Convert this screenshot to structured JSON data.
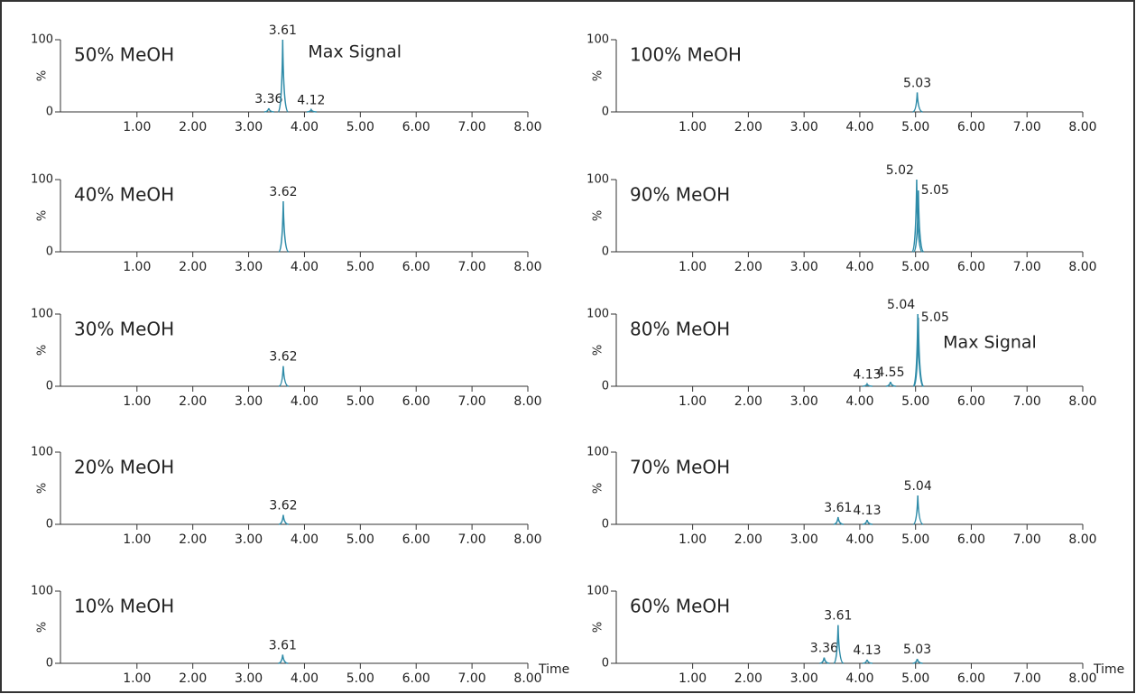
{
  "chart_data": [
    {
      "type": "line",
      "title": "50% MeOH",
      "ylabel": "%",
      "annotation": "Max Signal",
      "color": "#2e8ba8",
      "x": [
        3.36,
        3.61,
        4.12
      ],
      "values": [
        5,
        100,
        3
      ],
      "xlim": [
        -0.37,
        8
      ],
      "ylim": [
        0,
        100
      ],
      "yticks": [
        0,
        100
      ],
      "xticks": [
        {
          "value": 1,
          "label": "1.00"
        },
        {
          "value": 2,
          "label": "2.00"
        },
        {
          "value": 3,
          "label": "3.00"
        },
        {
          "value": 4,
          "label": "4.00"
        },
        {
          "value": 5,
          "label": "5.00"
        },
        {
          "value": 6,
          "label": "6.00"
        },
        {
          "value": 7,
          "label": "7.00"
        },
        {
          "value": 8,
          "label": "8.00"
        }
      ]
    },
    {
      "type": "line",
      "title": "100% MeOH",
      "ylabel": "%",
      "color": "#2e8ba8",
      "x": [
        5.03
      ],
      "values": [
        27
      ],
      "xlim": [
        -0.37,
        8
      ],
      "ylim": [
        0,
        100
      ],
      "yticks": [
        0,
        100
      ],
      "xticks": [
        {
          "value": 1,
          "label": "1.00"
        },
        {
          "value": 2,
          "label": "2.00"
        },
        {
          "value": 3,
          "label": "3.00"
        },
        {
          "value": 4,
          "label": "4.00"
        },
        {
          "value": 5,
          "label": "5.00"
        },
        {
          "value": 6,
          "label": "6.00"
        },
        {
          "value": 7,
          "label": "7.00"
        },
        {
          "value": 8,
          "label": "8.00"
        }
      ]
    },
    {
      "type": "line",
      "title": "40% MeOH",
      "ylabel": "%",
      "color": "#2e8ba8",
      "x": [
        3.62
      ],
      "values": [
        70
      ],
      "xlim": [
        -0.37,
        8
      ],
      "ylim": [
        0,
        100
      ],
      "yticks": [
        0,
        100
      ],
      "xticks": [
        {
          "value": 1,
          "label": "1.00"
        },
        {
          "value": 2,
          "label": "2.00"
        },
        {
          "value": 3,
          "label": "3.00"
        },
        {
          "value": 4,
          "label": "4.00"
        },
        {
          "value": 5,
          "label": "5.00"
        },
        {
          "value": 6,
          "label": "6.00"
        },
        {
          "value": 7,
          "label": "7.00"
        },
        {
          "value": 8,
          "label": "8.00"
        }
      ]
    },
    {
      "type": "line",
      "title": "90% MeOH",
      "ylabel": "%",
      "color": "#2e8ba8",
      "x": [
        5.02,
        5.05
      ],
      "values": [
        100,
        85
      ],
      "xlim": [
        -0.37,
        8
      ],
      "ylim": [
        0,
        100
      ],
      "yticks": [
        0,
        100
      ],
      "xticks": [
        {
          "value": 1,
          "label": "1.00"
        },
        {
          "value": 2,
          "label": "2.00"
        },
        {
          "value": 3,
          "label": "3.00"
        },
        {
          "value": 4,
          "label": "4.00"
        },
        {
          "value": 5,
          "label": "5.00"
        },
        {
          "value": 6,
          "label": "6.00"
        },
        {
          "value": 7,
          "label": "7.00"
        },
        {
          "value": 8,
          "label": "8.00"
        }
      ]
    },
    {
      "type": "line",
      "title": "30% MeOH",
      "ylabel": "%",
      "color": "#2e8ba8",
      "x": [
        3.62
      ],
      "values": [
        28
      ],
      "xlim": [
        -0.37,
        8
      ],
      "ylim": [
        0,
        100
      ],
      "yticks": [
        0,
        100
      ],
      "xticks": [
        {
          "value": 1,
          "label": "1.00"
        },
        {
          "value": 2,
          "label": "2.00"
        },
        {
          "value": 3,
          "label": "3.00"
        },
        {
          "value": 4,
          "label": "4.00"
        },
        {
          "value": 5,
          "label": "5.00"
        },
        {
          "value": 6,
          "label": "6.00"
        },
        {
          "value": 7,
          "label": "7.00"
        },
        {
          "value": 8,
          "label": "8.00"
        }
      ]
    },
    {
      "type": "line",
      "title": "80% MeOH",
      "ylabel": "%",
      "annotation": "Max Signal",
      "color": "#2e8ba8",
      "x": [
        4.13,
        4.55,
        5.04,
        5.05
      ],
      "values": [
        3,
        6,
        100,
        95
      ],
      "xlim": [
        -0.37,
        8
      ],
      "ylim": [
        0,
        100
      ],
      "yticks": [
        0,
        100
      ],
      "xticks": [
        {
          "value": 1,
          "label": "1.00"
        },
        {
          "value": 2,
          "label": "2.00"
        },
        {
          "value": 3,
          "label": "3.00"
        },
        {
          "value": 4,
          "label": "4.00"
        },
        {
          "value": 5,
          "label": "5.00"
        },
        {
          "value": 6,
          "label": "6.00"
        },
        {
          "value": 7,
          "label": "7.00"
        },
        {
          "value": 8,
          "label": "8.00"
        }
      ]
    },
    {
      "type": "line",
      "title": "20% MeOH",
      "ylabel": "%",
      "color": "#2e8ba8",
      "x": [
        3.62
      ],
      "values": [
        13
      ],
      "xlim": [
        -0.37,
        8
      ],
      "ylim": [
        0,
        100
      ],
      "yticks": [
        0,
        100
      ],
      "xticks": [
        {
          "value": 1,
          "label": "1.00"
        },
        {
          "value": 2,
          "label": "2.00"
        },
        {
          "value": 3,
          "label": "3.00"
        },
        {
          "value": 4,
          "label": "4.00"
        },
        {
          "value": 5,
          "label": "5.00"
        },
        {
          "value": 6,
          "label": "6.00"
        },
        {
          "value": 7,
          "label": "7.00"
        },
        {
          "value": 8,
          "label": "8.00"
        }
      ]
    },
    {
      "type": "line",
      "title": "70% MeOH",
      "ylabel": "%",
      "color": "#2e8ba8",
      "x": [
        3.61,
        4.13,
        5.04
      ],
      "values": [
        10,
        6,
        40
      ],
      "xlim": [
        -0.37,
        8
      ],
      "ylim": [
        0,
        100
      ],
      "yticks": [
        0,
        100
      ],
      "xticks": [
        {
          "value": 1,
          "label": "1.00"
        },
        {
          "value": 2,
          "label": "2.00"
        },
        {
          "value": 3,
          "label": "3.00"
        },
        {
          "value": 4,
          "label": "4.00"
        },
        {
          "value": 5,
          "label": "5.00"
        },
        {
          "value": 6,
          "label": "6.00"
        },
        {
          "value": 7,
          "label": "7.00"
        },
        {
          "value": 8,
          "label": "8.00"
        }
      ]
    },
    {
      "type": "line",
      "title": "10% MeOH",
      "ylabel": "%",
      "xlabel": "Time",
      "color": "#2e8ba8",
      "x": [
        3.61
      ],
      "values": [
        12
      ],
      "xlim": [
        -0.37,
        8
      ],
      "ylim": [
        0,
        100
      ],
      "yticks": [
        0,
        100
      ],
      "xticks": [
        {
          "value": 1,
          "label": "1.00"
        },
        {
          "value": 2,
          "label": "2.00"
        },
        {
          "value": 3,
          "label": "3.00"
        },
        {
          "value": 4,
          "label": "4.00"
        },
        {
          "value": 5,
          "label": "5.00"
        },
        {
          "value": 6,
          "label": "6.00"
        },
        {
          "value": 7,
          "label": "7.00"
        },
        {
          "value": 8,
          "label": "8.00"
        }
      ]
    },
    {
      "type": "line",
      "title": "60% MeOH",
      "ylabel": "%",
      "xlabel": "Time",
      "color": "#2e8ba8",
      "x": [
        3.36,
        3.61,
        4.13,
        5.03
      ],
      "values": [
        8,
        53,
        5,
        6
      ],
      "xlim": [
        -0.37,
        8
      ],
      "ylim": [
        0,
        100
      ],
      "yticks": [
        0,
        100
      ],
      "xticks": [
        {
          "value": 1,
          "label": "1.00"
        },
        {
          "value": 2,
          "label": "2.00"
        },
        {
          "value": 3,
          "label": "3.00"
        },
        {
          "value": 4,
          "label": "4.00"
        },
        {
          "value": 5,
          "label": "5.00"
        },
        {
          "value": 6,
          "label": "6.00"
        },
        {
          "value": 7,
          "label": "7.00"
        },
        {
          "value": 8,
          "label": "8.00"
        }
      ]
    }
  ]
}
